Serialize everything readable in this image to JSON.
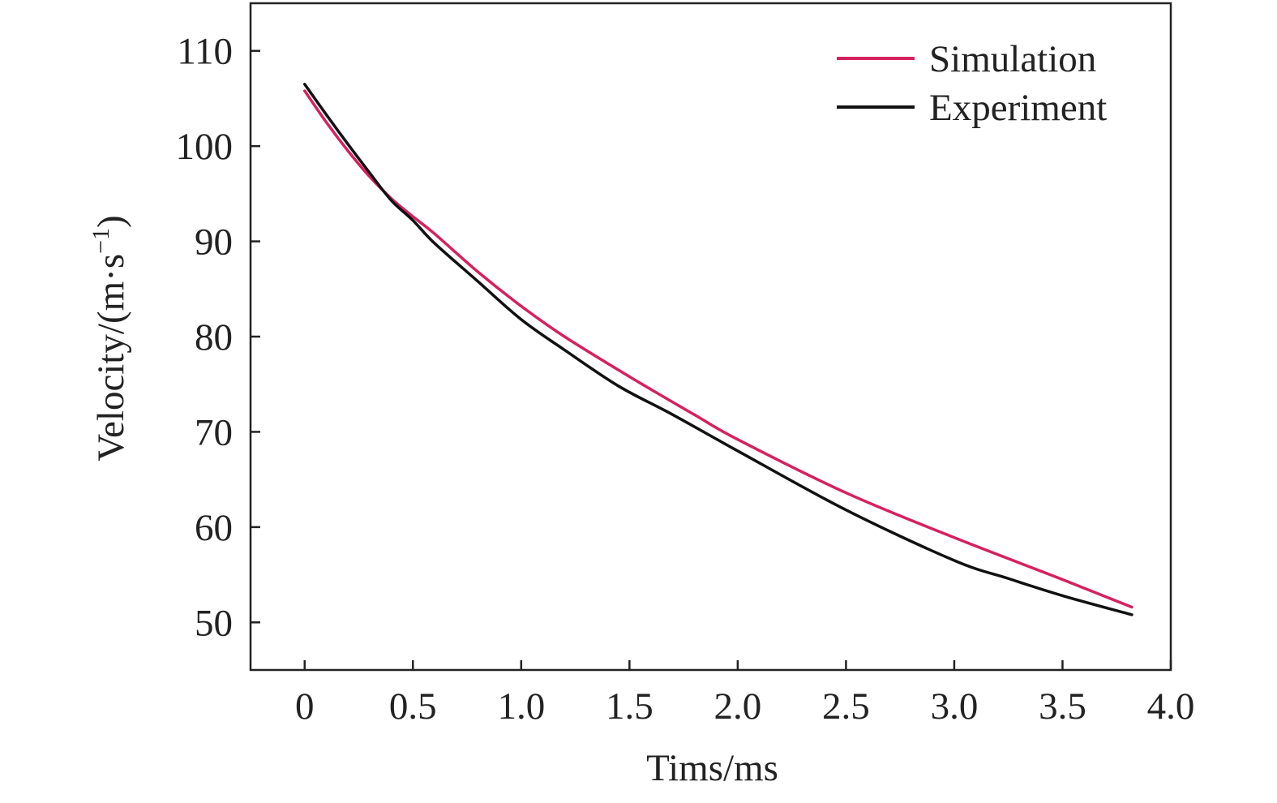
{
  "chart_data": {
    "type": "line",
    "xlabel": "Tims/ms",
    "ylabel": "Velocity/(m·s",
    "ylabel_sup": "−1",
    "ylabel_close": ")",
    "xlim": [
      -0.25,
      4.0
    ],
    "ylim": [
      45,
      115
    ],
    "x_ticks": [
      0,
      0.5,
      1.0,
      1.5,
      2.0,
      2.5,
      3.0,
      3.5,
      4.0
    ],
    "x_tick_labels": [
      "0",
      "0.5",
      "1.0",
      "1.5",
      "2.0",
      "2.5",
      "3.0",
      "3.5",
      "4.0"
    ],
    "y_ticks": [
      50,
      60,
      70,
      80,
      90,
      100,
      110
    ],
    "y_tick_labels": [
      "50",
      "60",
      "70",
      "80",
      "90",
      "100",
      "110"
    ],
    "grid": false,
    "legend_position": "top-right",
    "series": [
      {
        "name": "Simulation",
        "color": "#d6215e",
        "x": [
          0,
          0.1,
          0.2,
          0.3,
          0.4,
          0.5,
          0.6,
          0.8,
          1.0,
          1.2,
          1.5,
          1.8,
          2.0,
          2.5,
          3.0,
          3.5,
          3.82
        ],
        "y": [
          105.8,
          102.5,
          99.5,
          96.8,
          94.5,
          92.6,
          90.8,
          86.8,
          83.2,
          80.0,
          75.8,
          71.8,
          69.2,
          63.6,
          58.9,
          54.5,
          51.6
        ]
      },
      {
        "name": "Experiment",
        "color": "#111111",
        "x": [
          0,
          0.1,
          0.2,
          0.3,
          0.4,
          0.5,
          0.6,
          0.8,
          1.0,
          1.2,
          1.45,
          1.7,
          2.0,
          2.5,
          3.0,
          3.25,
          3.5,
          3.82
        ],
        "y": [
          106.5,
          103.3,
          100.2,
          97.2,
          94.3,
          92.2,
          89.8,
          85.8,
          81.8,
          78.6,
          74.8,
          71.8,
          68.0,
          61.8,
          56.5,
          54.6,
          52.8,
          50.8
        ]
      }
    ]
  }
}
